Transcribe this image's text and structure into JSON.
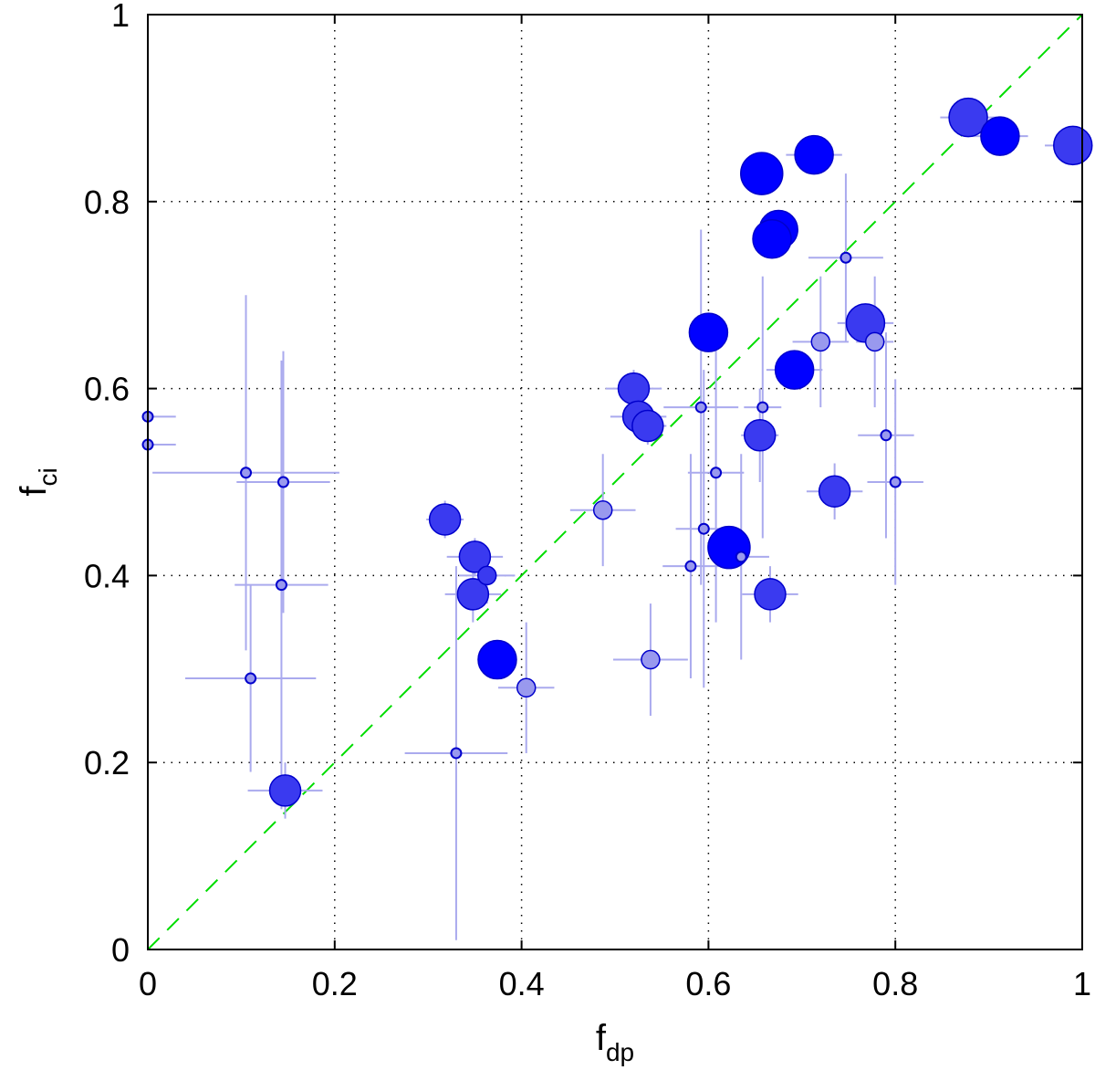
{
  "chart_data": {
    "type": "scatter",
    "title": "",
    "xlabel": {
      "base": "f",
      "sub": "dp"
    },
    "ylabel": {
      "base": "f",
      "sub": "ci"
    },
    "xlim": [
      0,
      1
    ],
    "ylim": [
      0,
      1
    ],
    "xticks": [
      0,
      0.2,
      0.4,
      0.6,
      0.8,
      1
    ],
    "yticks": [
      0,
      0.2,
      0.4,
      0.6,
      0.8,
      1
    ],
    "xtick_labels": [
      "0",
      "0.2",
      "0.4",
      "0.6",
      "0.8",
      "1"
    ],
    "ytick_labels": [
      "0",
      "0.2",
      "0.4",
      "0.6",
      "0.8",
      "1"
    ],
    "grid": true,
    "legend": "none",
    "reference_line": {
      "type": "y=x",
      "color": "#00dd00",
      "style": "dashed"
    },
    "colors": {
      "strong": "#0000ff",
      "medium": "#3a3af0",
      "light": "#9999ee",
      "errorbar": "#aaaaee",
      "marker_edge": "#0000cc"
    },
    "points": [
      {
        "x": 0.0,
        "y": 0.57,
        "xerr": 0.03,
        "yerr": 0.19,
        "size": "xs",
        "shade": "light"
      },
      {
        "x": 0.0,
        "y": 0.54,
        "xerr": 0.03,
        "yerr": 0.19,
        "size": "xs",
        "shade": "light"
      },
      {
        "x": 0.105,
        "y": 0.51,
        "xerr": 0.1,
        "yerr": 0.19,
        "size": "xs",
        "shade": "light"
      },
      {
        "x": 0.145,
        "y": 0.5,
        "xerr": 0.05,
        "yerr": 0.14,
        "size": "xs",
        "shade": "light"
      },
      {
        "x": 0.143,
        "y": 0.39,
        "xerr": 0.05,
        "yerr": 0.24,
        "size": "xs",
        "shade": "light"
      },
      {
        "x": 0.11,
        "y": 0.29,
        "xerr": 0.07,
        "yerr": 0.1,
        "size": "xs",
        "shade": "light"
      },
      {
        "x": 0.147,
        "y": 0.17,
        "xerr": 0.04,
        "yerr": 0.03,
        "size": "m",
        "shade": "medium"
      },
      {
        "x": 0.318,
        "y": 0.46,
        "xerr": 0.02,
        "yerr": 0.02,
        "size": "m",
        "shade": "medium"
      },
      {
        "x": 0.35,
        "y": 0.42,
        "xerr": 0.03,
        "yerr": 0.02,
        "size": "m",
        "shade": "medium"
      },
      {
        "x": 0.363,
        "y": 0.4,
        "xerr": 0.03,
        "yerr": 0.03,
        "size": "s",
        "shade": "medium"
      },
      {
        "x": 0.348,
        "y": 0.38,
        "xerr": 0.03,
        "yerr": 0.03,
        "size": "m",
        "shade": "medium"
      },
      {
        "x": 0.374,
        "y": 0.31,
        "xerr": 0.02,
        "yerr": 0.02,
        "size": "l",
        "shade": "strong"
      },
      {
        "x": 0.33,
        "y": 0.21,
        "xerr": 0.055,
        "yerr": 0.2,
        "size": "xs",
        "shade": "light"
      },
      {
        "x": 0.405,
        "y": 0.28,
        "xerr": 0.03,
        "yerr": 0.07,
        "size": "s",
        "shade": "light"
      },
      {
        "x": 0.487,
        "y": 0.47,
        "xerr": 0.035,
        "yerr": 0.06,
        "size": "s",
        "shade": "light"
      },
      {
        "x": 0.52,
        "y": 0.6,
        "xerr": 0.03,
        "yerr": 0.02,
        "size": "m",
        "shade": "medium"
      },
      {
        "x": 0.525,
        "y": 0.57,
        "xerr": 0.03,
        "yerr": 0.02,
        "size": "m",
        "shade": "medium"
      },
      {
        "x": 0.535,
        "y": 0.56,
        "xerr": 0.02,
        "yerr": 0.02,
        "size": "m",
        "shade": "medium"
      },
      {
        "x": 0.538,
        "y": 0.31,
        "xerr": 0.04,
        "yerr": 0.06,
        "size": "s",
        "shade": "light"
      },
      {
        "x": 0.6,
        "y": 0.66,
        "xerr": 0.02,
        "yerr": 0.02,
        "size": "l",
        "shade": "strong"
      },
      {
        "x": 0.592,
        "y": 0.58,
        "xerr": 0.04,
        "yerr": 0.19,
        "size": "xs",
        "shade": "light"
      },
      {
        "x": 0.608,
        "y": 0.51,
        "xerr": 0.03,
        "yerr": 0.16,
        "size": "xs",
        "shade": "light"
      },
      {
        "x": 0.595,
        "y": 0.45,
        "xerr": 0.03,
        "yerr": 0.17,
        "size": "xs",
        "shade": "light"
      },
      {
        "x": 0.581,
        "y": 0.41,
        "xerr": 0.03,
        "yerr": 0.12,
        "size": "xs",
        "shade": "light"
      },
      {
        "x": 0.622,
        "y": 0.43,
        "xerr": 0.02,
        "yerr": 0.02,
        "size": "xl",
        "shade": "strong"
      },
      {
        "x": 0.635,
        "y": 0.42,
        "xerr": 0.03,
        "yerr": 0.11,
        "size": "xs",
        "shade": "light"
      },
      {
        "x": 0.658,
        "y": 0.58,
        "xerr": 0.02,
        "yerr": 0.14,
        "size": "xs",
        "shade": "light"
      },
      {
        "x": 0.655,
        "y": 0.55,
        "xerr": 0.02,
        "yerr": 0.05,
        "size": "m",
        "shade": "medium"
      },
      {
        "x": 0.666,
        "y": 0.38,
        "xerr": 0.03,
        "yerr": 0.03,
        "size": "m",
        "shade": "medium"
      },
      {
        "x": 0.657,
        "y": 0.83,
        "xerr": 0.02,
        "yerr": 0.02,
        "size": "xl",
        "shade": "strong"
      },
      {
        "x": 0.675,
        "y": 0.77,
        "xerr": 0.02,
        "yerr": 0.02,
        "size": "l",
        "shade": "strong"
      },
      {
        "x": 0.668,
        "y": 0.76,
        "xerr": 0.02,
        "yerr": 0.02,
        "size": "l",
        "shade": "strong"
      },
      {
        "x": 0.713,
        "y": 0.85,
        "xerr": 0.03,
        "yerr": 0.02,
        "size": "l",
        "shade": "strong"
      },
      {
        "x": 0.692,
        "y": 0.62,
        "xerr": 0.03,
        "yerr": 0.02,
        "size": "l",
        "shade": "strong"
      },
      {
        "x": 0.72,
        "y": 0.65,
        "xerr": 0.03,
        "yerr": 0.07,
        "size": "s",
        "shade": "light"
      },
      {
        "x": 0.735,
        "y": 0.49,
        "xerr": 0.03,
        "yerr": 0.03,
        "size": "m",
        "shade": "medium"
      },
      {
        "x": 0.747,
        "y": 0.74,
        "xerr": 0.04,
        "yerr": 0.09,
        "size": "xs",
        "shade": "light"
      },
      {
        "x": 0.768,
        "y": 0.67,
        "xerr": 0.03,
        "yerr": 0.02,
        "size": "l",
        "shade": "medium"
      },
      {
        "x": 0.778,
        "y": 0.65,
        "xerr": 0.02,
        "yerr": 0.07,
        "size": "s",
        "shade": "light"
      },
      {
        "x": 0.79,
        "y": 0.55,
        "xerr": 0.03,
        "yerr": 0.11,
        "size": "xs",
        "shade": "light"
      },
      {
        "x": 0.8,
        "y": 0.5,
        "xerr": 0.03,
        "yerr": 0.11,
        "size": "xs",
        "shade": "light"
      },
      {
        "x": 0.878,
        "y": 0.89,
        "xerr": 0.03,
        "yerr": 0.02,
        "size": "l",
        "shade": "medium"
      },
      {
        "x": 0.912,
        "y": 0.87,
        "xerr": 0.03,
        "yerr": 0.02,
        "size": "l",
        "shade": "strong"
      },
      {
        "x": 0.99,
        "y": 0.86,
        "xerr": 0.03,
        "yerr": 0.02,
        "size": "l",
        "shade": "medium"
      }
    ]
  }
}
